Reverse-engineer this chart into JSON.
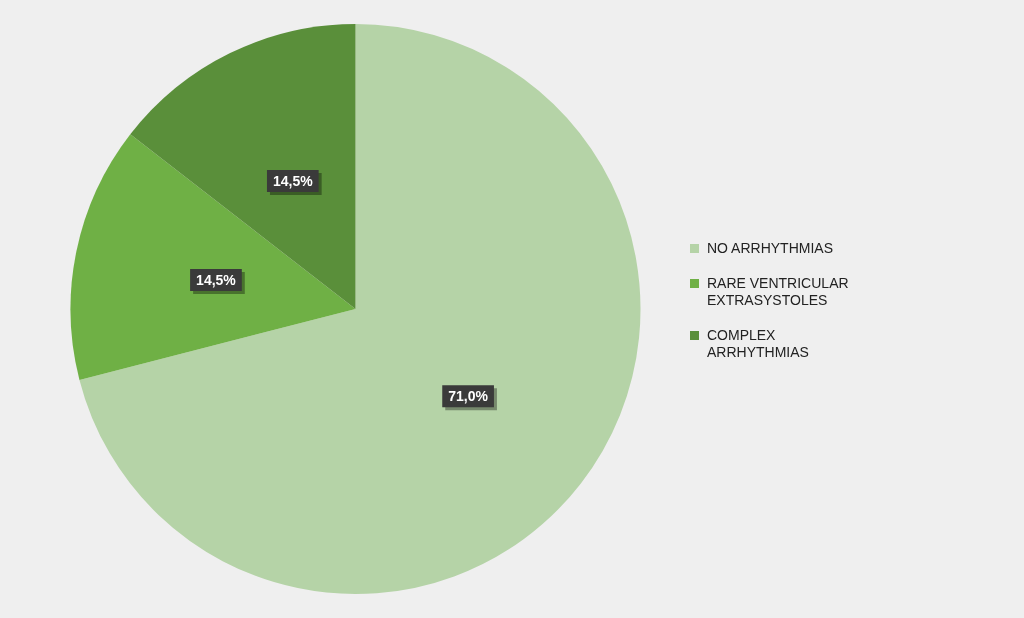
{
  "chart_data": {
    "type": "pie",
    "categories": [
      "NO ARRHYTHMIAS",
      "RARE VENTRICULAR EXTRASYSTOLES",
      "COMPLEX ARRHYTHMIAS"
    ],
    "values": [
      71.0,
      14.5,
      14.5
    ],
    "colors": [
      "#b5d3a7",
      "#6fb045",
      "#5a8f3a"
    ],
    "value_labels": [
      "71,0%",
      "14,5%",
      "14,5%"
    ],
    "legend": "right"
  }
}
